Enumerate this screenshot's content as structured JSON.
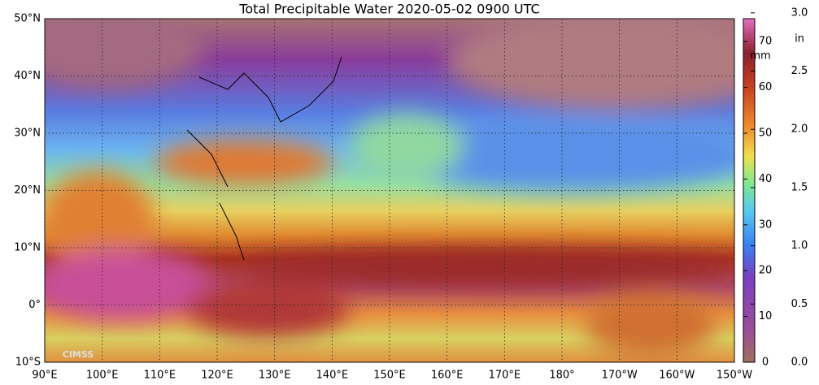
{
  "title": "Total Precipitable Water  2020-05-02 0900 UTC",
  "logo": "CIMSS",
  "map": {
    "lat_lim": [
      -10,
      50
    ],
    "lon_lim": [
      90,
      210
    ],
    "lat_ticks": [
      {
        "value": 50,
        "label": "50°N"
      },
      {
        "value": 40,
        "label": "40°N"
      },
      {
        "value": 30,
        "label": "30°N"
      },
      {
        "value": 20,
        "label": "20°N"
      },
      {
        "value": 10,
        "label": "10°N"
      },
      {
        "value": 0,
        "label": "0°"
      },
      {
        "value": -10,
        "label": "10°S"
      }
    ],
    "lon_ticks": [
      {
        "value": 90,
        "label": "90°E"
      },
      {
        "value": 100,
        "label": "100°E"
      },
      {
        "value": 110,
        "label": "110°E"
      },
      {
        "value": 120,
        "label": "120°E"
      },
      {
        "value": 130,
        "label": "130°E"
      },
      {
        "value": 140,
        "label": "140°E"
      },
      {
        "value": 150,
        "label": "150°E"
      },
      {
        "value": 160,
        "label": "160°E"
      },
      {
        "value": 170,
        "label": "170°E"
      },
      {
        "value": 180,
        "label": "180°"
      },
      {
        "value": 190,
        "label": "170°W"
      },
      {
        "value": 200,
        "label": "160°W"
      },
      {
        "value": 210,
        "label": "150°W"
      }
    ]
  },
  "colorbar": {
    "mm_unit": "mm",
    "in_unit": "in",
    "mm_lim": [
      0,
      75
    ],
    "mm_ticks": [
      0,
      10,
      20,
      30,
      40,
      50,
      60,
      70
    ],
    "in_lim": [
      0,
      2.95
    ],
    "in_ticks": [
      {
        "value": 0,
        "label": "0.0"
      },
      {
        "value": 0.5,
        "label": "0.5"
      },
      {
        "value": 1,
        "label": "1.0"
      },
      {
        "value": 1.5,
        "label": "1.5"
      },
      {
        "value": 2,
        "label": "2.0"
      },
      {
        "value": 2.5,
        "label": "2.5"
      },
      {
        "value": 3,
        "label": "3.0"
      }
    ]
  }
}
